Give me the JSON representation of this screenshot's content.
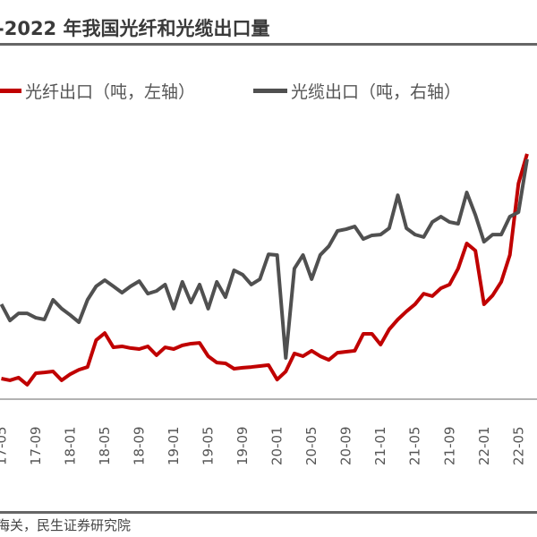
{
  "chart_data": {
    "type": "line",
    "title": "-2022 年我国光纤和光缆出口量",
    "source": "海关，民生证券研究院",
    "x": [
      "17-05",
      "17-06",
      "17-07",
      "17-08",
      "17-09",
      "17-10",
      "17-11",
      "17-12",
      "18-01",
      "18-02",
      "18-03",
      "18-04",
      "18-05",
      "18-06",
      "18-07",
      "18-08",
      "18-09",
      "18-10",
      "18-11",
      "18-12",
      "19-01",
      "19-02",
      "19-03",
      "19-04",
      "19-05",
      "19-06",
      "19-07",
      "19-08",
      "19-09",
      "19-10",
      "19-11",
      "19-12",
      "20-01",
      "20-02",
      "20-03",
      "20-04",
      "20-05",
      "20-06",
      "20-07",
      "20-08",
      "20-09",
      "20-10",
      "20-11",
      "20-12",
      "21-01",
      "21-02",
      "21-03",
      "21-04",
      "21-05",
      "21-06",
      "21-07",
      "21-08",
      "21-09",
      "21-10",
      "21-11",
      "21-12",
      "22-01",
      "22-02",
      "22-03",
      "22-04",
      "22-05",
      "22-06"
    ],
    "x_tick_labels": [
      "17-05",
      "17-09",
      "18-01",
      "18-05",
      "18-09",
      "19-01",
      "19-05",
      "19-09",
      "20-01",
      "20-05",
      "20-09",
      "21-01",
      "21-05",
      "21-09",
      "22-01",
      "22-05"
    ],
    "ylim": [
      0,
      100
    ],
    "grid": false,
    "legend_position": "top",
    "series": [
      {
        "name": "光纤出口（吨，左轴）",
        "color": "#c00000",
        "values": [
          8,
          7.3,
          8.4,
          5.5,
          10.2,
          10.5,
          10.9,
          7.3,
          9.8,
          11.6,
          12.7,
          23.6,
          26.5,
          20.7,
          21.1,
          20.4,
          20,
          21.1,
          17.5,
          20.7,
          20,
          21.5,
          22.2,
          22.5,
          17.1,
          14.5,
          14.2,
          12,
          12.4,
          12.7,
          13.1,
          13.5,
          7.6,
          10.9,
          18.2,
          17.1,
          19.3,
          17.1,
          15.6,
          18.5,
          18.9,
          19.3,
          26.2,
          26.2,
          21.8,
          28,
          32,
          35.3,
          38.2,
          42.5,
          41.5,
          44.7,
          46.2,
          52.7,
          62.9,
          60,
          38.2,
          41.8,
          47.3,
          58.2,
          87.3,
          99.3
        ]
      },
      {
        "name": "光缆出口（吨，右轴）",
        "color": "#505050",
        "values": [
          38.2,
          31.6,
          34.5,
          34.5,
          32.7,
          32,
          40,
          36.4,
          33.8,
          30.9,
          40,
          45.5,
          48,
          45.5,
          42.9,
          45.5,
          47.6,
          42.5,
          43.6,
          46.2,
          36.4,
          47.3,
          38.9,
          46.2,
          36.4,
          47.3,
          41.1,
          52,
          50.2,
          46.2,
          48.4,
          58.5,
          58.2,
          16.4,
          52.7,
          58.2,
          48.4,
          58.2,
          61.8,
          68,
          68.7,
          69.8,
          64.7,
          66.2,
          66.5,
          69.1,
          82.5,
          69.1,
          66.5,
          65.5,
          71.6,
          73.8,
          71.6,
          70.9,
          83.6,
          74.5,
          63.6,
          66.5,
          66.5,
          73.8,
          75.6,
          97.1
        ]
      }
    ]
  }
}
